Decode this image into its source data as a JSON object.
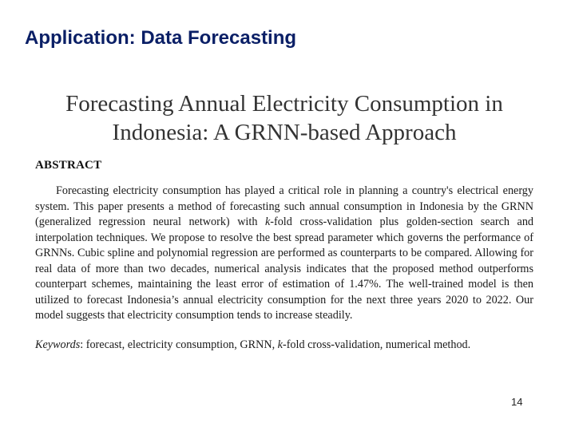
{
  "slide": {
    "title": "Application: Data Forecasting",
    "page_number": "14"
  },
  "paper": {
    "title_line1": "Forecasting Annual Electricity Consumption in",
    "title_line2": "Indonesia: A GRNN-based Approach",
    "abstract_heading": "ABSTRACT",
    "abstract_part1": "Forecasting electricity consumption has played a critical role in planning a country's electrical energy system. This paper presents a method of forecasting such annual consumption in Indonesia by the GRNN (generalized regression neural network) with ",
    "abstract_k": "k",
    "abstract_part2": "-fold cross-validation plus golden-section search and interpolation techniques. We propose to resolve the best spread parameter which governs the performance of GRNNs. Cubic spline and polynomial regression are performed as counterparts to be compared. Allowing for real data of more than two decades, numerical analysis indicates that the proposed method outperforms counterpart schemes, maintaining the least error of estimation of 1.47%. The well-trained model is then utilized to forecast Indonesia’s annual electricity consumption for the next three years 2020 to 2022. Our model suggests that electricity consumption tends to increase steadily.",
    "keywords_label": "Keywords",
    "keywords_part1": ": forecast, electricity consumption, GRNN, ",
    "keywords_k": "k",
    "keywords_part2": "-fold cross-validation, numerical method."
  }
}
